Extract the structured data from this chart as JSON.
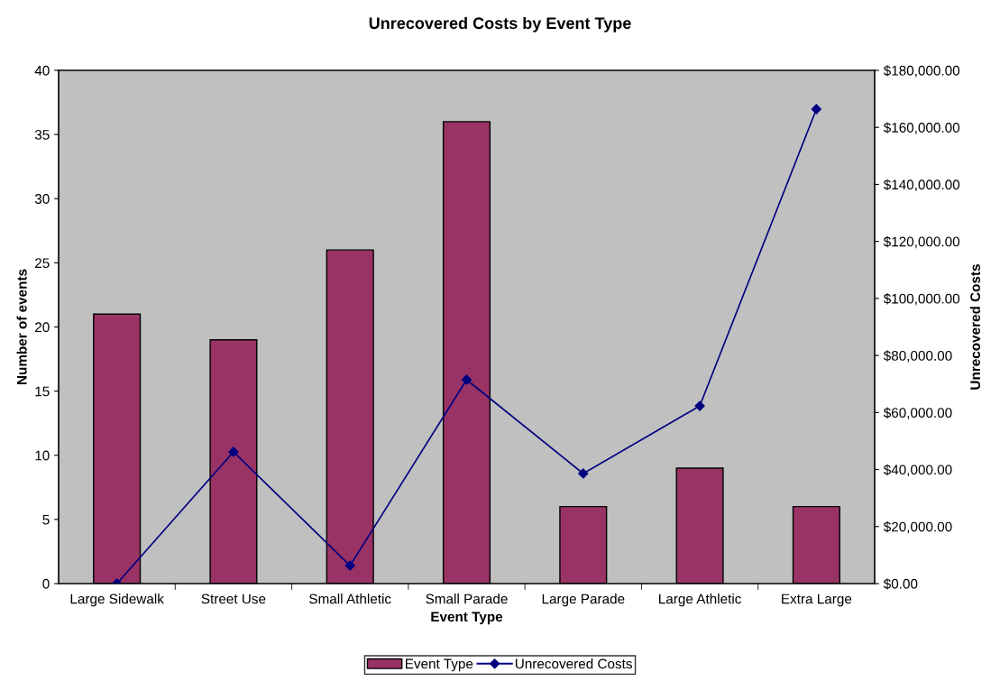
{
  "chart_data": {
    "type": "bar",
    "title": "Unrecovered Costs by Event Type",
    "xlabel": "Event Type",
    "ylabel": "Number of events",
    "y2label": "Unrecovered Costs",
    "categories": [
      "Large Sidewalk",
      "Street Use",
      "Small Athletic",
      "Small Parade",
      "Large Parade",
      "Large Athletic",
      "Extra Large"
    ],
    "series": [
      {
        "name": "Event Type",
        "color": "#993366",
        "values": [
          21,
          19,
          26,
          36,
          6,
          9,
          6
        ]
      },
      {
        "name": "Unrecovered Costs",
        "type": "line",
        "axis": "y2",
        "color": "#000080",
        "marker": "diamond",
        "line_style": "solid",
        "values": [
          0,
          46200,
          6300,
          71500,
          38600,
          62300,
          166400
        ]
      }
    ],
    "ylim": [
      0,
      40
    ],
    "yticks": [
      0,
      5,
      10,
      15,
      20,
      25,
      30,
      35,
      40
    ],
    "y2lim": [
      0,
      180000
    ],
    "y2ticks": [
      {
        "value": 0,
        "label": "$0.00"
      },
      {
        "value": 20000,
        "label": "$20,000.00"
      },
      {
        "value": 40000,
        "label": "$40,000.00"
      },
      {
        "value": 60000,
        "label": "$60,000.00"
      },
      {
        "value": 80000,
        "label": "$80,000.00"
      },
      {
        "value": 100000,
        "label": "$100,000.00"
      },
      {
        "value": 120000,
        "label": "$120,000.00"
      },
      {
        "value": 140000,
        "label": "$140,000.00"
      },
      {
        "value": 160000,
        "label": "$160,000.00"
      },
      {
        "value": 180000,
        "label": "$180,000.00"
      }
    ],
    "grid": false,
    "legend": "bottom"
  }
}
